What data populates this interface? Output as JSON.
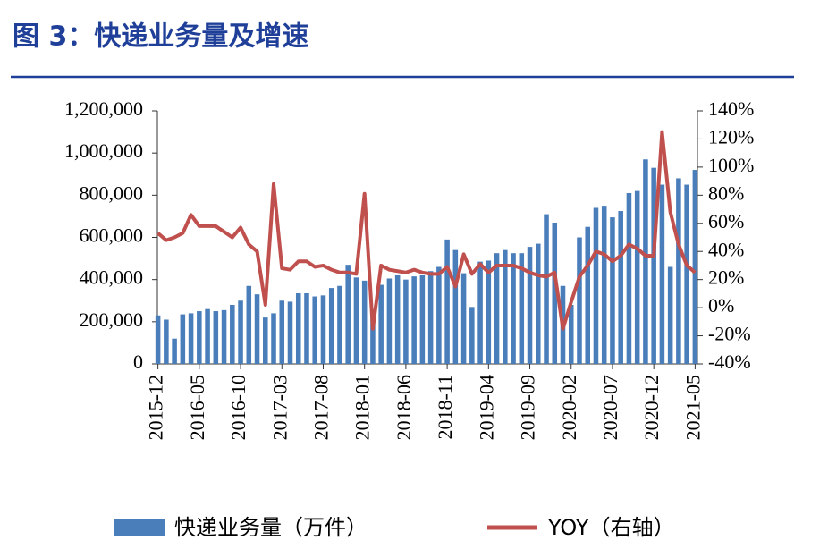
{
  "chart_data": {
    "type": "bar_line",
    "title": "图 3：快递业务量及增速",
    "categories": [
      "2015-12",
      null,
      null,
      null,
      null,
      "2016-05",
      null,
      null,
      null,
      null,
      "2016-10",
      null,
      null,
      null,
      null,
      "2017-03",
      null,
      null,
      null,
      null,
      "2017-08",
      null,
      null,
      null,
      null,
      "2018-01",
      null,
      null,
      null,
      null,
      "2018-06",
      null,
      null,
      null,
      null,
      "2018-11",
      null,
      null,
      null,
      null,
      "2019-04",
      null,
      null,
      null,
      null,
      "2019-09",
      null,
      null,
      null,
      null,
      "2020-02",
      null,
      null,
      null,
      null,
      "2020-07",
      null,
      null,
      null,
      null,
      "2020-12",
      null,
      null,
      null,
      null,
      "2021-05"
    ],
    "series": [
      {
        "name": "快递业务量（万件）",
        "color": "#4a7ebb",
        "values": [
          230000,
          210000,
          120000,
          235000,
          240000,
          250000,
          260000,
          250000,
          255000,
          280000,
          300000,
          370000,
          330000,
          220000,
          240000,
          300000,
          295000,
          335000,
          335000,
          320000,
          325000,
          360000,
          370000,
          470000,
          410000,
          395000,
          240000,
          375000,
          405000,
          420000,
          400000,
          415000,
          420000,
          440000,
          460000,
          590000,
          540000,
          430000,
          270000,
          485000,
          490000,
          525000,
          540000,
          525000,
          525000,
          555000,
          570000,
          710000,
          670000,
          370000,
          280000,
          600000,
          650000,
          740000,
          750000,
          695000,
          725000,
          810000,
          820000,
          970000,
          930000,
          850000,
          460000,
          880000,
          850000,
          920000
        ]
      },
      {
        "name": "YOY（右轴）",
        "color": "#c0504d",
        "axis": "y2",
        "values": [
          53,
          48,
          50,
          53,
          66,
          58,
          58,
          58,
          54,
          50,
          57,
          45,
          40,
          2,
          88,
          28,
          27,
          33,
          33,
          29,
          30,
          27,
          25,
          25,
          24,
          81,
          -15,
          30,
          27,
          26,
          25,
          27,
          25,
          24,
          24,
          29,
          15,
          38,
          24,
          31,
          25,
          30,
          30,
          30,
          28,
          25,
          23,
          22,
          25,
          -15,
          4,
          22,
          30,
          40,
          38,
          33,
          37,
          45,
          42,
          37,
          37,
          125,
          68,
          45,
          30,
          25
        ]
      }
    ],
    "ylim": [
      0,
      1200000
    ],
    "yticks": [
      0,
      {
        "value": 200000,
        "label": "200,000"
      },
      {
        "value": 400000,
        "label": "400,000"
      },
      {
        "value": 600000,
        "label": "600,000"
      },
      {
        "value": 800000,
        "label": "800,000"
      },
      {
        "value": 1000000,
        "label": "1,000,000"
      },
      {
        "value": 1200000,
        "label": "1,200,000"
      }
    ],
    "y2lim": [
      -40,
      140
    ],
    "y2ticks": [
      {
        "value": -40,
        "label": "-40%"
      },
      {
        "value": -20,
        "label": "-20%"
      },
      {
        "value": 0,
        "label": "0%"
      },
      {
        "value": 20,
        "label": "20%"
      },
      {
        "value": 40,
        "label": "40%"
      },
      {
        "value": 60,
        "label": "60%"
      },
      {
        "value": 80,
        "label": "80%"
      },
      {
        "value": 100,
        "label": "100%"
      },
      {
        "value": 120,
        "label": "120%"
      },
      {
        "value": 140,
        "label": "140%"
      }
    ]
  }
}
